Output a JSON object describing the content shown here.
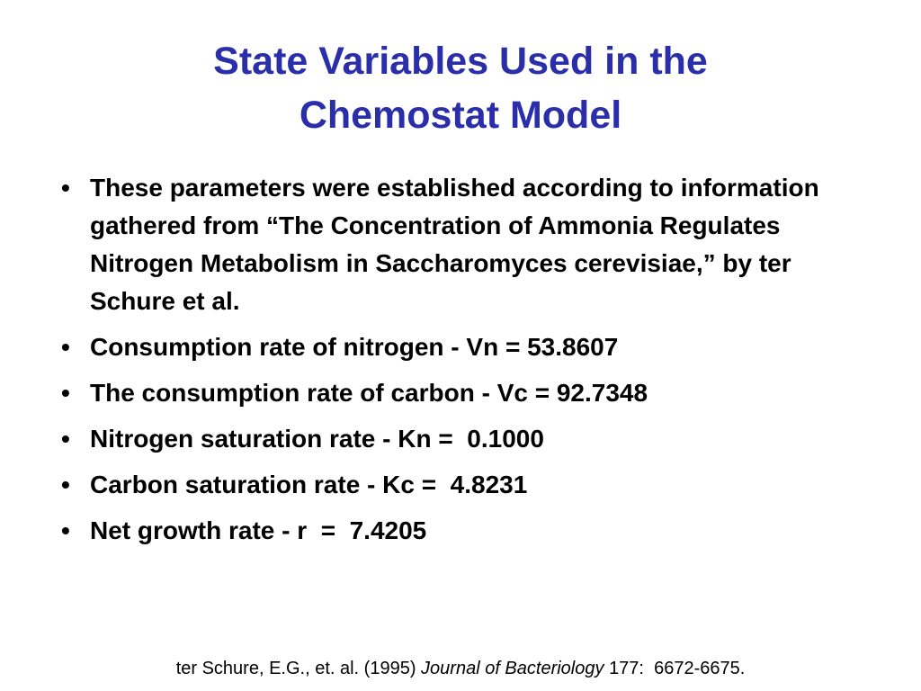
{
  "title": "State Variables Used in the Chemostat Model",
  "bullets": [
    "These parameters were established according to information gathered from “The Concentration of Ammonia Regulates Nitrogen Metabolism in Saccharomyces cerevisiae,” by ter Schure et al.",
    "Consumption rate of nitrogen - Vn = 53.8607",
    "The consumption rate of carbon - Vc = 92.7348",
    "Nitrogen saturation rate - Kn =  0.1000",
    "Carbon saturation rate - Kc =  4.8231",
    "Net growth rate - r  =  7.4205"
  ],
  "citation": {
    "authors": "ter Schure, E.G., et. al. (1995)",
    "journal": "Journal of Bacteriology",
    "details": "177:  6672-6675."
  }
}
